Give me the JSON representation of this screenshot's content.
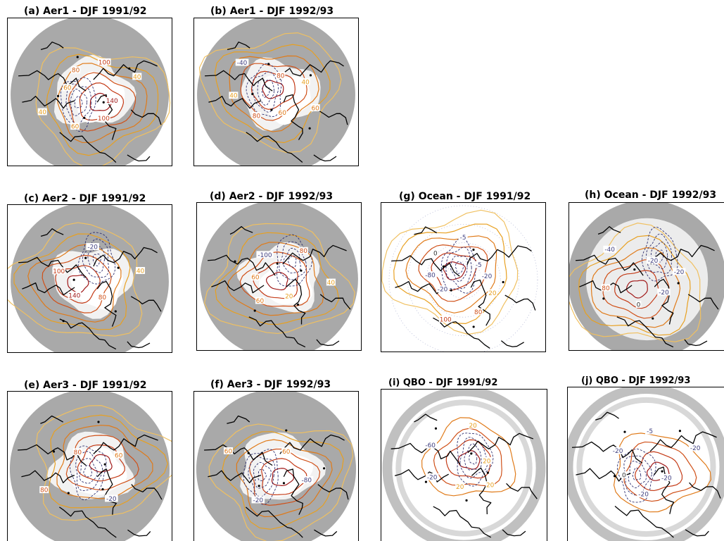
{
  "figure": {
    "panels": [
      {
        "id": "a",
        "title": "(a) Aer1 - DJF 1991/92",
        "style": "gray",
        "labels": [
          {
            "t": "140",
            "c": "#a01818"
          },
          {
            "t": "100",
            "c": "#c43a16"
          },
          {
            "t": "60",
            "c": "#e08a18"
          },
          {
            "t": "40",
            "c": "#e8a020"
          },
          {
            "t": "60",
            "c": "#e08a18"
          },
          {
            "t": "80",
            "c": "#d06018"
          },
          {
            "t": "100",
            "c": "#c43a16"
          },
          {
            "t": "40",
            "c": "#e8a020"
          }
        ]
      },
      {
        "id": "b",
        "title": "(b) Aer1 - DJF 1992/93",
        "style": "gray",
        "labels": [
          {
            "t": "60",
            "c": "#e07a18"
          },
          {
            "t": "80",
            "c": "#d05018"
          },
          {
            "t": "40",
            "c": "#e8a020"
          },
          {
            "t": "-40",
            "c": "#404080"
          },
          {
            "t": "80",
            "c": "#d05018"
          },
          {
            "t": "40",
            "c": "#e8a020"
          },
          {
            "t": "60",
            "c": "#e07a18"
          }
        ]
      },
      {
        "id": "c",
        "title": "(c) Aer2 - DJF 1991/92",
        "style": "gray",
        "labels": [
          {
            "t": "140",
            "c": "#a01818"
          },
          {
            "t": "100",
            "c": "#c43a16"
          },
          {
            "t": "-20",
            "c": "#404080"
          },
          {
            "t": "40",
            "c": "#e8a020"
          },
          {
            "t": "80",
            "c": "#d05018"
          }
        ]
      },
      {
        "id": "d",
        "title": "(d) Aer2 - DJF 1992/93",
        "style": "gray",
        "labels": [
          {
            "t": "60",
            "c": "#e07a18"
          },
          {
            "t": "-100",
            "c": "#404080"
          },
          {
            "t": "80",
            "c": "#d05018"
          },
          {
            "t": "40",
            "c": "#e8a020"
          },
          {
            "t": "20",
            "c": "#e8a020"
          },
          {
            "t": "60",
            "c": "#e07a18"
          }
        ]
      },
      {
        "id": "e",
        "title": "(e) Aer3 - DJF 1991/92",
        "style": "gray",
        "labels": [
          {
            "t": "80",
            "c": "#d05018"
          },
          {
            "t": "60",
            "c": "#e07a18"
          },
          {
            "t": "-20",
            "c": "#404080"
          },
          {
            "t": "80",
            "c": "#d05018"
          }
        ]
      },
      {
        "id": "f",
        "title": "(f) Aer3 - DJF 1992/93",
        "style": "gray",
        "labels": [
          {
            "t": "60",
            "c": "#e07a18"
          },
          {
            "t": "-80",
            "c": "#404080"
          },
          {
            "t": "-20",
            "c": "#404080"
          },
          {
            "t": "60",
            "c": "#e07a18"
          }
        ]
      },
      {
        "id": "g",
        "title": "(g) Ocean - DJF 1991/92",
        "style": "white",
        "labels": [
          {
            "t": "-20",
            "c": "#404080"
          },
          {
            "t": "20",
            "c": "#e8a020"
          },
          {
            "t": "80",
            "c": "#d05018"
          },
          {
            "t": "100",
            "c": "#c43a16"
          },
          {
            "t": "-20",
            "c": "#404080"
          },
          {
            "t": "-80",
            "c": "#404080"
          },
          {
            "t": "0",
            "c": "#303030"
          },
          {
            "t": "-5",
            "c": "#404080"
          },
          {
            "t": "-5",
            "c": "#404080"
          }
        ]
      },
      {
        "id": "h",
        "title": "(h) Ocean - DJF 1992/93",
        "style": "grayring",
        "labels": [
          {
            "t": "-20",
            "c": "#404080"
          },
          {
            "t": "0",
            "c": "#303030"
          },
          {
            "t": "80",
            "c": "#d05018"
          },
          {
            "t": "-40",
            "c": "#404080"
          },
          {
            "t": "-20",
            "c": "#404080"
          },
          {
            "t": "-20",
            "c": "#404080"
          }
        ]
      },
      {
        "id": "i",
        "title": "(i) QBO - DJF 1991/92",
        "style": "ring",
        "labels": [
          {
            "t": "20",
            "c": "#e8a020"
          },
          {
            "t": "-20",
            "c": "#404080"
          },
          {
            "t": "-60",
            "c": "#404080"
          },
          {
            "t": "20",
            "c": "#e8a020"
          },
          {
            "t": "20",
            "c": "#e8a020"
          },
          {
            "t": "20",
            "c": "#e8a020"
          }
        ]
      },
      {
        "id": "j",
        "title": "(j) QBO - DJF 1992/93",
        "style": "ring",
        "labels": [
          {
            "t": "0",
            "c": "#303030"
          },
          {
            "t": "-20",
            "c": "#404080"
          },
          {
            "t": "-5",
            "c": "#404080"
          },
          {
            "t": "-20",
            "c": "#404080"
          },
          {
            "t": "-20",
            "c": "#404080"
          },
          {
            "t": "-20",
            "c": "#404080"
          }
        ]
      }
    ]
  }
}
